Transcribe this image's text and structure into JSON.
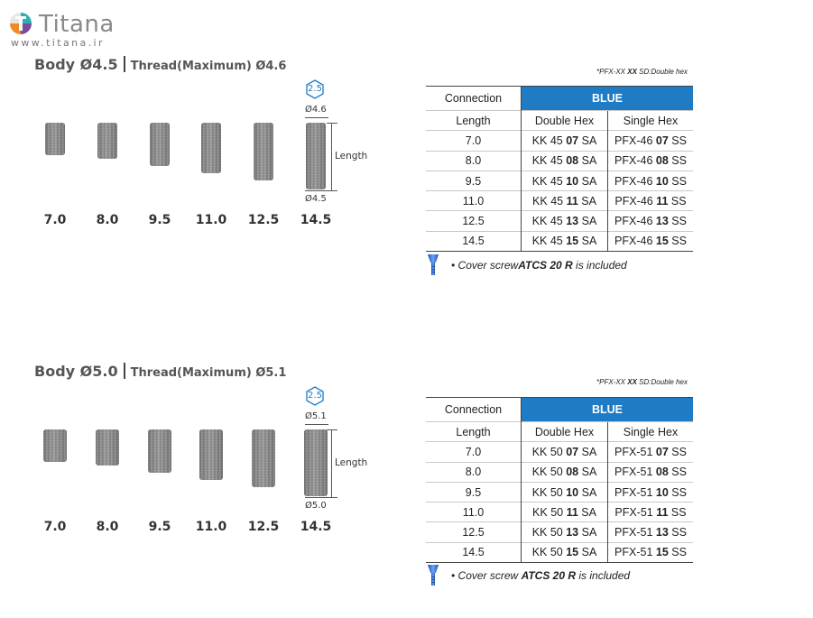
{
  "brand": {
    "name": "Titana",
    "url": "www.titana.ir",
    "logo_icon": "titana-logo-icon",
    "colors": {
      "logo_orange": "#f08a24",
      "logo_teal": "#2bb0b5",
      "logo_purple": "#7a4b9b"
    }
  },
  "colors": {
    "table_header_blue": "#1f7bc4",
    "implant_grey": "#8c8c8c",
    "hex_badge": "#1f7bc4",
    "screw_blue": "#2f6fd0"
  },
  "sections": [
    {
      "body": "Body Ø4.5",
      "thread": "Thread(Maximum) Ø4.6",
      "note": {
        "prefix": "*PFX-XX ",
        "bold": "XX",
        "suffix": " SD:Double hex"
      },
      "implant_lengths": [
        "7.0",
        "8.0",
        "9.5",
        "11.0",
        "12.5",
        "14.5"
      ],
      "hex_size": "2.5",
      "top_diameter": "Ø4.6",
      "bottom_diameter": "Ø4.5",
      "length_label": "Length",
      "table": {
        "connection_label": "Connection",
        "color_label": "BLUE",
        "length_header": "Length",
        "double_hex_header": "Double Hex",
        "single_hex_header": "Single Hex",
        "rows": [
          {
            "length": "7.0",
            "dh_pre": "KK 45 ",
            "dh_num": "07",
            "dh_suf": " SA",
            "sh_pre": "PFX-46 ",
            "sh_num": "07",
            "sh_suf": " SS"
          },
          {
            "length": "8.0",
            "dh_pre": "KK 45 ",
            "dh_num": "08",
            "dh_suf": " SA",
            "sh_pre": "PFX-46 ",
            "sh_num": "08",
            "sh_suf": " SS"
          },
          {
            "length": "9.5",
            "dh_pre": "KK 45 ",
            "dh_num": "10",
            "dh_suf": " SA",
            "sh_pre": "PFX-46 ",
            "sh_num": "10",
            "sh_suf": " SS"
          },
          {
            "length": "11.0",
            "dh_pre": "KK 45 ",
            "dh_num": "11",
            "dh_suf": " SA",
            "sh_pre": "PFX-46 ",
            "sh_num": "11",
            "sh_suf": " SS"
          },
          {
            "length": "12.5",
            "dh_pre": "KK 45 ",
            "dh_num": "13",
            "dh_suf": " SA",
            "sh_pre": "PFX-46 ",
            "sh_num": "13",
            "sh_suf": " SS"
          },
          {
            "length": "14.5",
            "dh_pre": "KK 45 ",
            "dh_num": "15",
            "dh_suf": " SA",
            "sh_pre": "PFX-46 ",
            "sh_num": "15",
            "sh_suf": " SS"
          }
        ]
      },
      "cover": {
        "prefix": "• Cover screw",
        "bold": "ATCS 20 R",
        "suffix": " is included"
      }
    },
    {
      "body": "Body Ø5.0",
      "thread": "Thread(Maximum) Ø5.1",
      "note": {
        "prefix": "*PFX-XX ",
        "bold": "XX",
        "suffix": " SD:Double hex"
      },
      "implant_lengths": [
        "7.0",
        "8.0",
        "9.5",
        "11.0",
        "12.5",
        "14.5"
      ],
      "hex_size": "2.5",
      "top_diameter": "Ø5.1",
      "bottom_diameter": "Ø5.0",
      "length_label": "Length",
      "table": {
        "connection_label": "Connection",
        "color_label": "BLUE",
        "length_header": "Length",
        "double_hex_header": "Double Hex",
        "single_hex_header": "Single Hex",
        "rows": [
          {
            "length": "7.0",
            "dh_pre": "KK 50 ",
            "dh_num": "07",
            "dh_suf": " SA",
            "sh_pre": "PFX-51 ",
            "sh_num": "07",
            "sh_suf": " SS"
          },
          {
            "length": "8.0",
            "dh_pre": "KK 50 ",
            "dh_num": "08",
            "dh_suf": " SA",
            "sh_pre": "PFX-51 ",
            "sh_num": "08",
            "sh_suf": " SS"
          },
          {
            "length": "9.5",
            "dh_pre": "KK 50 ",
            "dh_num": "10",
            "dh_suf": " SA",
            "sh_pre": "PFX-51 ",
            "sh_num": "10",
            "sh_suf": " SS"
          },
          {
            "length": "11.0",
            "dh_pre": "KK 50 ",
            "dh_num": "11",
            "dh_suf": " SA",
            "sh_pre": "PFX-51 ",
            "sh_num": "11",
            "sh_suf": " SS"
          },
          {
            "length": "12.5",
            "dh_pre": "KK 50 ",
            "dh_num": "13",
            "dh_suf": " SA",
            "sh_pre": "PFX-51 ",
            "sh_num": "13",
            "sh_suf": " SS"
          },
          {
            "length": "14.5",
            "dh_pre": "KK 50 ",
            "dh_num": "15",
            "dh_suf": " SA",
            "sh_pre": "PFX-51 ",
            "sh_num": "15",
            "sh_suf": " SS"
          }
        ]
      },
      "cover": {
        "prefix": "• Cover screw ",
        "bold": "ATCS 20 R",
        "suffix": " is included"
      }
    }
  ]
}
